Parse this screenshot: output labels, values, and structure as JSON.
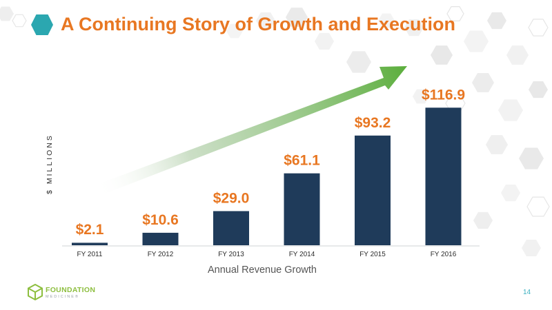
{
  "slide": {
    "title": "A Continuing Story of Growth and Execution",
    "page_number": "14"
  },
  "logo": {
    "name": "FOUNDATION",
    "sub": "MEDICINE®"
  },
  "colors": {
    "title": "#E87722",
    "bar": "#1F3B5A",
    "value_label": "#E87722",
    "accent_hex": "#2BA7B0",
    "arrow": "#5BAE3C",
    "logo": "#8DBE3F"
  },
  "chart_data": {
    "type": "bar",
    "title": "",
    "xlabel": "Annual Revenue Growth",
    "ylabel": "$ MILLIONS",
    "categories": [
      "FY 2011",
      "FY 2012",
      "FY 2013",
      "FY 2014",
      "FY 2015",
      "FY 2016"
    ],
    "values": [
      2.1,
      10.6,
      29.0,
      61.1,
      93.2,
      116.9
    ],
    "value_labels": [
      "$2.1",
      "$10.6",
      "$29.0",
      "$61.1",
      "$93.2",
      "$116.9"
    ],
    "ylim": [
      0,
      120
    ],
    "grid": false,
    "annotation": "growth-arrow"
  }
}
